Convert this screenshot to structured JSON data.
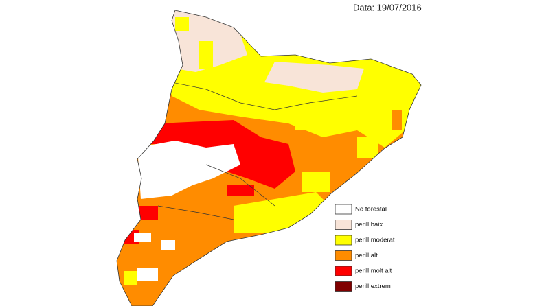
{
  "title": "Data: 19/07/2016",
  "legend": [
    {
      "label": "No forestal",
      "color": "#ffffff"
    },
    {
      "label": "perill baix",
      "color": "#f8e4d8"
    },
    {
      "label": "perill moderat",
      "color": "#ffff00"
    },
    {
      "label": "perill alt",
      "color": "#ff8c00"
    },
    {
      "label": "perill molt alt",
      "color": "#ff0000"
    },
    {
      "label": "perill extrem",
      "color": "#800000"
    }
  ]
}
